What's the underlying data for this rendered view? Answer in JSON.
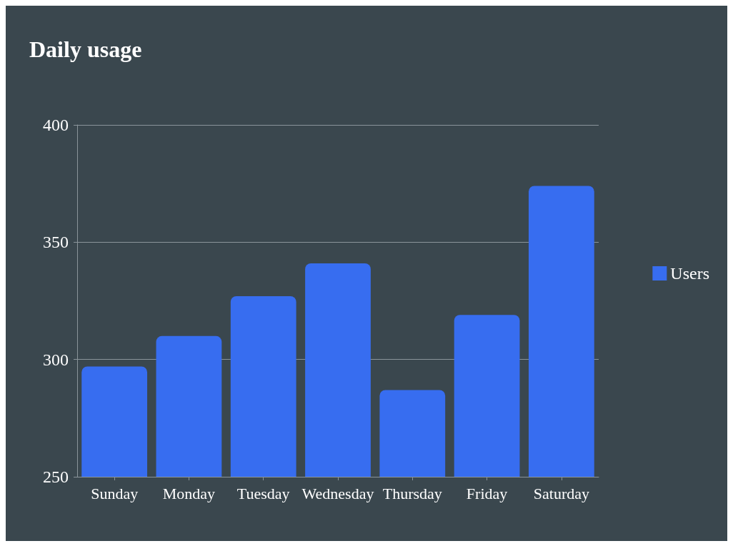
{
  "chart_data": {
    "type": "bar",
    "title": "Daily usage",
    "categories": [
      "Sunday",
      "Monday",
      "Tuesday",
      "Wednesday",
      "Thursday",
      "Friday",
      "Saturday"
    ],
    "series": [
      {
        "name": "Users",
        "color": "#376df0",
        "values": [
          297,
          310,
          327,
          341,
          287,
          319,
          374
        ]
      }
    ],
    "ylim": [
      250,
      400
    ],
    "yticks": [
      250,
      300,
      350,
      400
    ],
    "grid": "y",
    "legend": "right"
  }
}
